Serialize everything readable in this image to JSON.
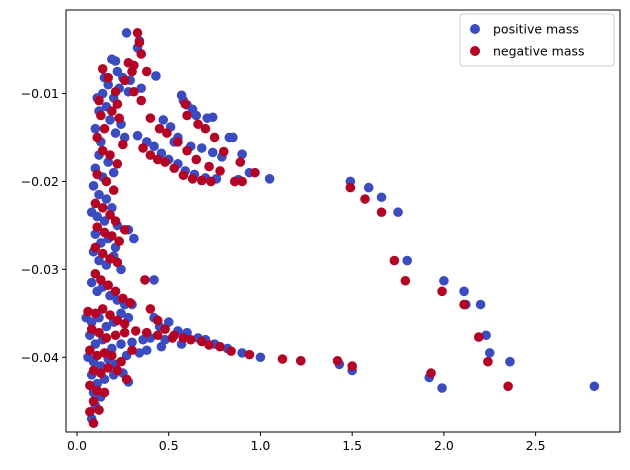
{
  "chart_data": {
    "type": "scatter",
    "title": "",
    "xlabel": "",
    "ylabel": "",
    "xlim": [
      -0.06,
      2.96
    ],
    "ylim": [
      -0.0485,
      -0.0005
    ],
    "xticks": [
      0.0,
      0.5,
      1.0,
      1.5,
      2.0,
      2.5
    ],
    "xtick_labels": [
      "0.0",
      "0.5",
      "1.0",
      "1.5",
      "2.0",
      "2.5"
    ],
    "yticks": [
      -0.04,
      -0.03,
      -0.02,
      -0.01
    ],
    "ytick_labels": [
      "−0.04",
      "−0.03",
      "−0.02",
      "−0.01"
    ],
    "grid": false,
    "legend_position": "top-right",
    "series": [
      {
        "name": "positive mass",
        "color": "#3b4cc0",
        "points": [
          [
            0.27,
            -0.0031
          ],
          [
            0.34,
            -0.004
          ],
          [
            0.33,
            -0.0048
          ],
          [
            0.19,
            -0.0061
          ],
          [
            0.21,
            -0.0063
          ],
          [
            0.22,
            -0.0075
          ],
          [
            0.25,
            -0.0082
          ],
          [
            0.15,
            -0.0082
          ],
          [
            0.29,
            -0.0085
          ],
          [
            0.43,
            -0.008
          ],
          [
            0.17,
            -0.009
          ],
          [
            0.23,
            -0.0094
          ],
          [
            0.35,
            -0.0094
          ],
          [
            0.11,
            -0.0105
          ],
          [
            0.14,
            -0.01
          ],
          [
            0.2,
            -0.0105
          ],
          [
            0.28,
            -0.0098
          ],
          [
            0.57,
            -0.0102
          ],
          [
            0.58,
            -0.0108
          ],
          [
            0.6,
            -0.0113
          ],
          [
            0.63,
            -0.0118
          ],
          [
            0.65,
            -0.0125
          ],
          [
            0.71,
            -0.0128
          ],
          [
            0.74,
            -0.0127
          ],
          [
            0.83,
            -0.015
          ],
          [
            0.85,
            -0.015
          ],
          [
            0.9,
            -0.0169
          ],
          [
            0.94,
            -0.019
          ],
          [
            1.05,
            -0.0197
          ],
          [
            0.47,
            -0.013
          ],
          [
            0.51,
            -0.0138
          ],
          [
            0.55,
            -0.015
          ],
          [
            0.53,
            -0.0155
          ],
          [
            0.62,
            -0.016
          ],
          [
            0.68,
            -0.0162
          ],
          [
            0.74,
            -0.0167
          ],
          [
            0.79,
            -0.0172
          ],
          [
            0.33,
            -0.0148
          ],
          [
            0.38,
            -0.0155
          ],
          [
            0.42,
            -0.016
          ],
          [
            0.46,
            -0.0168
          ],
          [
            0.5,
            -0.0175
          ],
          [
            0.55,
            -0.018
          ],
          [
            0.59,
            -0.0188
          ],
          [
            0.64,
            -0.0192
          ],
          [
            0.7,
            -0.0196
          ],
          [
            0.76,
            -0.0197
          ],
          [
            0.88,
            -0.0198
          ],
          [
            0.12,
            -0.012
          ],
          [
            0.1,
            -0.014
          ],
          [
            0.13,
            -0.0155
          ],
          [
            0.16,
            -0.0115
          ],
          [
            0.18,
            -0.013
          ],
          [
            0.21,
            -0.0145
          ],
          [
            0.24,
            -0.0135
          ],
          [
            0.26,
            -0.015
          ],
          [
            0.12,
            -0.017
          ],
          [
            0.1,
            -0.0185
          ],
          [
            0.14,
            -0.0195
          ],
          [
            0.17,
            -0.0178
          ],
          [
            0.2,
            -0.019
          ],
          [
            0.09,
            -0.0205
          ],
          [
            0.12,
            -0.0215
          ],
          [
            0.16,
            -0.022
          ],
          [
            0.08,
            -0.0235
          ],
          [
            0.11,
            -0.024
          ],
          [
            0.15,
            -0.0245
          ],
          [
            0.19,
            -0.023
          ],
          [
            0.22,
            -0.025
          ],
          [
            0.1,
            -0.026
          ],
          [
            0.13,
            -0.027
          ],
          [
            0.17,
            -0.0265
          ],
          [
            0.21,
            -0.0275
          ],
          [
            0.09,
            -0.028
          ],
          [
            0.12,
            -0.029
          ],
          [
            0.16,
            -0.0295
          ],
          [
            0.2,
            -0.0285
          ],
          [
            0.24,
            -0.03
          ],
          [
            0.28,
            -0.0255
          ],
          [
            0.31,
            -0.0265
          ],
          [
            0.42,
            -0.0312
          ],
          [
            0.08,
            -0.0315
          ],
          [
            0.11,
            -0.0325
          ],
          [
            0.14,
            -0.032
          ],
          [
            0.18,
            -0.033
          ],
          [
            0.22,
            -0.0335
          ],
          [
            0.26,
            -0.034
          ],
          [
            0.3,
            -0.034
          ],
          [
            0.05,
            -0.0355
          ],
          [
            0.08,
            -0.036
          ],
          [
            0.12,
            -0.0355
          ],
          [
            0.16,
            -0.0365
          ],
          [
            0.2,
            -0.036
          ],
          [
            0.24,
            -0.035
          ],
          [
            0.28,
            -0.0355
          ],
          [
            0.42,
            -0.0355
          ],
          [
            0.45,
            -0.0365
          ],
          [
            0.5,
            -0.036
          ],
          [
            0.55,
            -0.037
          ],
          [
            0.6,
            -0.0372
          ],
          [
            0.66,
            -0.0378
          ],
          [
            0.7,
            -0.038
          ],
          [
            0.75,
            -0.0385
          ],
          [
            0.82,
            -0.039
          ],
          [
            0.9,
            -0.0395
          ],
          [
            1.0,
            -0.04
          ],
          [
            0.07,
            -0.0375
          ],
          [
            0.1,
            -0.0385
          ],
          [
            0.14,
            -0.038
          ],
          [
            0.19,
            -0.039
          ],
          [
            0.24,
            -0.0385
          ],
          [
            0.3,
            -0.0383
          ],
          [
            0.36,
            -0.038
          ],
          [
            0.4,
            -0.0378
          ],
          [
            0.48,
            -0.038
          ],
          [
            0.57,
            -0.0385
          ],
          [
            0.06,
            -0.04
          ],
          [
            0.09,
            -0.0405
          ],
          [
            0.13,
            -0.041
          ],
          [
            0.17,
            -0.0402
          ],
          [
            0.21,
            -0.0408
          ],
          [
            0.27,
            -0.0398
          ],
          [
            0.34,
            -0.0395
          ],
          [
            0.38,
            -0.0392
          ],
          [
            0.46,
            -0.0388
          ],
          [
            0.08,
            -0.042
          ],
          [
            0.11,
            -0.043
          ],
          [
            0.15,
            -0.0425
          ],
          [
            0.2,
            -0.042
          ],
          [
            0.25,
            -0.0418
          ],
          [
            0.28,
            -0.0428
          ],
          [
            0.09,
            -0.044
          ],
          [
            0.13,
            -0.0445
          ],
          [
            0.1,
            -0.0455
          ],
          [
            0.08,
            -0.047
          ],
          [
            1.49,
            -0.02
          ],
          [
            1.59,
            -0.0207
          ],
          [
            1.66,
            -0.0218
          ],
          [
            1.75,
            -0.0235
          ],
          [
            1.8,
            -0.029
          ],
          [
            2.0,
            -0.0313
          ],
          [
            2.11,
            -0.0325
          ],
          [
            2.2,
            -0.034
          ],
          [
            2.23,
            -0.0375
          ],
          [
            2.25,
            -0.0395
          ],
          [
            2.36,
            -0.0405
          ],
          [
            2.82,
            -0.0433
          ],
          [
            1.5,
            -0.0415
          ],
          [
            1.43,
            -0.0408
          ],
          [
            1.22,
            -0.0404
          ],
          [
            1.92,
            -0.0423
          ],
          [
            1.99,
            -0.0435
          ],
          [
            2.12,
            -0.034
          ]
        ]
      },
      {
        "name": "negative mass",
        "color": "#b40426",
        "points": [
          [
            0.33,
            -0.0031
          ],
          [
            0.34,
            -0.0042
          ],
          [
            0.35,
            -0.0055
          ],
          [
            0.28,
            -0.0065
          ],
          [
            0.31,
            -0.0068
          ],
          [
            0.3,
            -0.0075
          ],
          [
            0.26,
            -0.0085
          ],
          [
            0.14,
            -0.0072
          ],
          [
            0.17,
            -0.0082
          ],
          [
            0.38,
            -0.0075
          ],
          [
            0.21,
            -0.0098
          ],
          [
            0.31,
            -0.0098
          ],
          [
            0.12,
            -0.0108
          ],
          [
            0.22,
            -0.0112
          ],
          [
            0.35,
            -0.0108
          ],
          [
            0.59,
            -0.0112
          ],
          [
            0.6,
            -0.0125
          ],
          [
            0.66,
            -0.0135
          ],
          [
            0.7,
            -0.014
          ],
          [
            0.75,
            -0.015
          ],
          [
            0.8,
            -0.0166
          ],
          [
            0.89,
            -0.0178
          ],
          [
            0.97,
            -0.019
          ],
          [
            0.9,
            -0.02
          ],
          [
            0.4,
            -0.0128
          ],
          [
            0.45,
            -0.014
          ],
          [
            0.49,
            -0.0145
          ],
          [
            0.55,
            -0.0155
          ],
          [
            0.6,
            -0.0165
          ],
          [
            0.65,
            -0.0175
          ],
          [
            0.72,
            -0.0183
          ],
          [
            0.78,
            -0.0188
          ],
          [
            0.36,
            -0.0162
          ],
          [
            0.4,
            -0.017
          ],
          [
            0.44,
            -0.0175
          ],
          [
            0.48,
            -0.0178
          ],
          [
            0.53,
            -0.0185
          ],
          [
            0.58,
            -0.0193
          ],
          [
            0.63,
            -0.0197
          ],
          [
            0.68,
            -0.0199
          ],
          [
            0.73,
            -0.02
          ],
          [
            0.86,
            -0.02
          ],
          [
            0.13,
            -0.0125
          ],
          [
            0.11,
            -0.015
          ],
          [
            0.15,
            -0.014
          ],
          [
            0.19,
            -0.012
          ],
          [
            0.23,
            -0.0128
          ],
          [
            0.25,
            -0.0158
          ],
          [
            0.14,
            -0.0165
          ],
          [
            0.18,
            -0.017
          ],
          [
            0.22,
            -0.018
          ],
          [
            0.11,
            -0.0192
          ],
          [
            0.16,
            -0.02
          ],
          [
            0.2,
            -0.021
          ],
          [
            0.1,
            -0.0225
          ],
          [
            0.14,
            -0.023
          ],
          [
            0.18,
            -0.0238
          ],
          [
            0.21,
            -0.0245
          ],
          [
            0.11,
            -0.0252
          ],
          [
            0.15,
            -0.0258
          ],
          [
            0.19,
            -0.0262
          ],
          [
            0.23,
            -0.0268
          ],
          [
            0.1,
            -0.0275
          ],
          [
            0.14,
            -0.0282
          ],
          [
            0.18,
            -0.0288
          ],
          [
            0.22,
            -0.0292
          ],
          [
            0.26,
            -0.0255
          ],
          [
            0.37,
            -0.0312
          ],
          [
            0.1,
            -0.0305
          ],
          [
            0.13,
            -0.0312
          ],
          [
            0.17,
            -0.0318
          ],
          [
            0.21,
            -0.0325
          ],
          [
            0.25,
            -0.0333
          ],
          [
            0.29,
            -0.0338
          ],
          [
            0.06,
            -0.0348
          ],
          [
            0.1,
            -0.035
          ],
          [
            0.14,
            -0.0345
          ],
          [
            0.18,
            -0.0352
          ],
          [
            0.22,
            -0.0358
          ],
          [
            0.26,
            -0.0362
          ],
          [
            0.4,
            -0.0345
          ],
          [
            0.44,
            -0.0358
          ],
          [
            0.48,
            -0.0368
          ],
          [
            0.53,
            -0.0375
          ],
          [
            0.58,
            -0.0378
          ],
          [
            0.62,
            -0.038
          ],
          [
            0.68,
            -0.0382
          ],
          [
            0.72,
            -0.0386
          ],
          [
            0.78,
            -0.0388
          ],
          [
            0.84,
            -0.0393
          ],
          [
            0.94,
            -0.0397
          ],
          [
            0.08,
            -0.0368
          ],
          [
            0.12,
            -0.0372
          ],
          [
            0.16,
            -0.0378
          ],
          [
            0.21,
            -0.0375
          ],
          [
            0.26,
            -0.0372
          ],
          [
            0.32,
            -0.037
          ],
          [
            0.38,
            -0.0372
          ],
          [
            0.44,
            -0.0375
          ],
          [
            0.52,
            -0.0378
          ],
          [
            0.07,
            -0.0392
          ],
          [
            0.11,
            -0.0398
          ],
          [
            0.15,
            -0.0395
          ],
          [
            0.19,
            -0.0398
          ],
          [
            0.24,
            -0.0405
          ],
          [
            0.3,
            -0.0392
          ],
          [
            0.09,
            -0.0415
          ],
          [
            0.13,
            -0.0418
          ],
          [
            0.17,
            -0.0412
          ],
          [
            0.22,
            -0.0415
          ],
          [
            0.27,
            -0.0425
          ],
          [
            0.07,
            -0.0432
          ],
          [
            0.11,
            -0.0438
          ],
          [
            0.15,
            -0.044
          ],
          [
            0.09,
            -0.045
          ],
          [
            0.12,
            -0.046
          ],
          [
            0.07,
            -0.0462
          ],
          [
            0.09,
            -0.0475
          ],
          [
            1.49,
            -0.0207
          ],
          [
            1.57,
            -0.022
          ],
          [
            1.66,
            -0.0235
          ],
          [
            1.73,
            -0.029
          ],
          [
            1.79,
            -0.0313
          ],
          [
            1.99,
            -0.0325
          ],
          [
            2.11,
            -0.034
          ],
          [
            2.19,
            -0.0377
          ],
          [
            2.24,
            -0.0405
          ],
          [
            2.35,
            -0.0433
          ],
          [
            1.42,
            -0.0404
          ],
          [
            1.5,
            -0.041
          ],
          [
            1.12,
            -0.0402
          ],
          [
            1.22,
            -0.0404
          ],
          [
            1.93,
            -0.0418
          ]
        ]
      }
    ]
  }
}
